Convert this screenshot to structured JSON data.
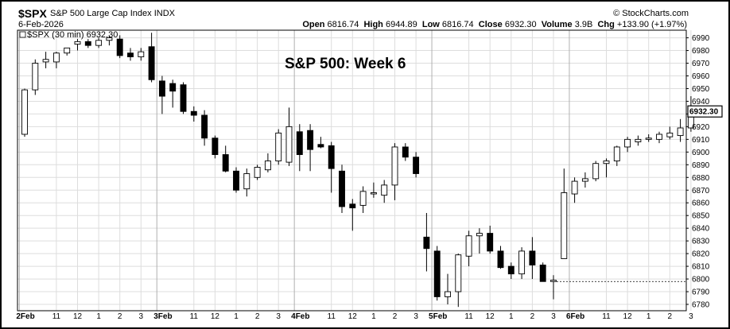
{
  "header": {
    "symbol": "$SPX",
    "name": "S&P 500 Large Cap Index",
    "exchange": "INDX",
    "date": "6-Feb-2026",
    "watermark": "© StockCharts.com",
    "open_label": "Open",
    "open": "6816.74",
    "high_label": "High",
    "high": "6944.89",
    "low_label": "Low",
    "low": "6816.74",
    "close_label": "Close",
    "close": "6932.30",
    "volume_label": "Volume",
    "volume": "3.9B",
    "chg_label": "Chg",
    "chg": "+133.90 (+1.97%)"
  },
  "legend": "$SPX (30 min) 6932.30",
  "annotation": "S&P 500:  Week 6",
  "price_tag": "6932.30",
  "colors": {
    "up": "#ffffff",
    "down": "#000000",
    "grid": "#dddddd",
    "border": "#000000"
  },
  "chart_data": {
    "type": "candlestick",
    "title": "S&P 500:  Week 6",
    "interval": "30 min",
    "ylim": [
      6775,
      6996
    ],
    "yticks": [
      6780,
      6790,
      6800,
      6810,
      6820,
      6830,
      6840,
      6850,
      6860,
      6870,
      6880,
      6890,
      6900,
      6910,
      6920,
      6930,
      6940,
      6950,
      6960,
      6970,
      6980,
      6990
    ],
    "xticks": [
      {
        "label": "2Feb",
        "bar": 0,
        "day": true
      },
      {
        "label": "11",
        "bar": 3
      },
      {
        "label": "12",
        "bar": 5
      },
      {
        "label": "1",
        "bar": 7
      },
      {
        "label": "2",
        "bar": 9
      },
      {
        "label": "3",
        "bar": 11
      },
      {
        "label": "3Feb",
        "bar": 13,
        "day": true
      },
      {
        "label": "11",
        "bar": 16
      },
      {
        "label": "12",
        "bar": 18
      },
      {
        "label": "1",
        "bar": 20
      },
      {
        "label": "2",
        "bar": 22
      },
      {
        "label": "3",
        "bar": 24
      },
      {
        "label": "4Feb",
        "bar": 26,
        "day": true
      },
      {
        "label": "11",
        "bar": 29
      },
      {
        "label": "12",
        "bar": 31
      },
      {
        "label": "1",
        "bar": 33
      },
      {
        "label": "2",
        "bar": 35
      },
      {
        "label": "3",
        "bar": 37
      },
      {
        "label": "5Feb",
        "bar": 39,
        "day": true
      },
      {
        "label": "11",
        "bar": 42
      },
      {
        "label": "12",
        "bar": 44
      },
      {
        "label": "1",
        "bar": 46
      },
      {
        "label": "2",
        "bar": 48
      },
      {
        "label": "3",
        "bar": 50
      },
      {
        "label": "6Feb",
        "bar": 52,
        "day": true
      },
      {
        "label": "11",
        "bar": 55
      },
      {
        "label": "12",
        "bar": 57
      },
      {
        "label": "1",
        "bar": 59
      },
      {
        "label": "2",
        "bar": 61
      },
      {
        "label": "3",
        "bar": 63
      }
    ],
    "reference_line": 6798,
    "candles": [
      {
        "o": 6914,
        "h": 6950,
        "l": 6912,
        "c": 6949
      },
      {
        "o": 6949,
        "h": 6973,
        "l": 6945,
        "c": 6970
      },
      {
        "o": 6971,
        "h": 6979,
        "l": 6966,
        "c": 6973
      },
      {
        "o": 6971,
        "h": 6979,
        "l": 6966,
        "c": 6978
      },
      {
        "o": 6978,
        "h": 6982,
        "l": 6976,
        "c": 6982
      },
      {
        "o": 6985,
        "h": 6989,
        "l": 6980,
        "c": 6987
      },
      {
        "o": 6987,
        "h": 6989,
        "l": 6982,
        "c": 6984
      },
      {
        "o": 6984,
        "h": 6990,
        "l": 6982,
        "c": 6988
      },
      {
        "o": 6988,
        "h": 6992,
        "l": 6984,
        "c": 6990
      },
      {
        "o": 6989,
        "h": 6992,
        "l": 6974,
        "c": 6976
      },
      {
        "o": 6978,
        "h": 6982,
        "l": 6972,
        "c": 6975
      },
      {
        "o": 6975,
        "h": 6982,
        "l": 6972,
        "c": 6979
      },
      {
        "o": 6983,
        "h": 6994,
        "l": 6955,
        "c": 6957
      },
      {
        "o": 6956,
        "h": 6960,
        "l": 6930,
        "c": 6944
      },
      {
        "o": 6954,
        "h": 6957,
        "l": 6935,
        "c": 6948
      },
      {
        "o": 6953,
        "h": 6955,
        "l": 6930,
        "c": 6932
      },
      {
        "o": 6932,
        "h": 6936,
        "l": 6924,
        "c": 6929
      },
      {
        "o": 6929,
        "h": 6933,
        "l": 6905,
        "c": 6911
      },
      {
        "o": 6911,
        "h": 6913,
        "l": 6895,
        "c": 6898
      },
      {
        "o": 6898,
        "h": 6905,
        "l": 6884,
        "c": 6885
      },
      {
        "o": 6885,
        "h": 6888,
        "l": 6868,
        "c": 6870
      },
      {
        "o": 6871,
        "h": 6887,
        "l": 6865,
        "c": 6883
      },
      {
        "o": 6880,
        "h": 6890,
        "l": 6878,
        "c": 6888
      },
      {
        "o": 6886,
        "h": 6899,
        "l": 6884,
        "c": 6893
      },
      {
        "o": 6893,
        "h": 6918,
        "l": 6890,
        "c": 6915
      },
      {
        "o": 6892,
        "h": 6935,
        "l": 6889,
        "c": 6920
      },
      {
        "o": 6916,
        "h": 6922,
        "l": 6885,
        "c": 6898
      },
      {
        "o": 6917,
        "h": 6922,
        "l": 6885,
        "c": 6902
      },
      {
        "o": 6906,
        "h": 6912,
        "l": 6903,
        "c": 6904
      },
      {
        "o": 6905,
        "h": 6908,
        "l": 6868,
        "c": 6887
      },
      {
        "o": 6885,
        "h": 6890,
        "l": 6852,
        "c": 6857
      },
      {
        "o": 6859,
        "h": 6863,
        "l": 6838,
        "c": 6856
      },
      {
        "o": 6858,
        "h": 6873,
        "l": 6852,
        "c": 6869
      },
      {
        "o": 6867,
        "h": 6876,
        "l": 6864,
        "c": 6868
      },
      {
        "o": 6866,
        "h": 6878,
        "l": 6860,
        "c": 6874
      },
      {
        "o": 6874,
        "h": 6907,
        "l": 6862,
        "c": 6904
      },
      {
        "o": 6904,
        "h": 6907,
        "l": 6893,
        "c": 6896
      },
      {
        "o": 6896,
        "h": 6900,
        "l": 6880,
        "c": 6883
      },
      {
        "o": 6833,
        "h": 6852,
        "l": 6806,
        "c": 6824
      },
      {
        "o": 6822,
        "h": 6826,
        "l": 6783,
        "c": 6786
      },
      {
        "o": 6786,
        "h": 6804,
        "l": 6780,
        "c": 6790
      },
      {
        "o": 6790,
        "h": 6820,
        "l": 6778,
        "c": 6819
      },
      {
        "o": 6818,
        "h": 6838,
        "l": 6810,
        "c": 6834
      },
      {
        "o": 6834,
        "h": 6840,
        "l": 6820,
        "c": 6836
      },
      {
        "o": 6836,
        "h": 6842,
        "l": 6820,
        "c": 6822
      },
      {
        "o": 6822,
        "h": 6826,
        "l": 6808,
        "c": 6809
      },
      {
        "o": 6810,
        "h": 6813,
        "l": 6800,
        "c": 6804
      },
      {
        "o": 6804,
        "h": 6825,
        "l": 6800,
        "c": 6822
      },
      {
        "o": 6822,
        "h": 6833,
        "l": 6800,
        "c": 6811
      },
      {
        "o": 6811,
        "h": 6813,
        "l": 6798,
        "c": 6798
      },
      {
        "o": 6798,
        "h": 6803,
        "l": 6784,
        "c": 6799
      },
      {
        "o": 6816,
        "h": 6887,
        "l": 6816,
        "c": 6868
      },
      {
        "o": 6867,
        "h": 6880,
        "l": 6860,
        "c": 6877
      },
      {
        "o": 6877,
        "h": 6884,
        "l": 6872,
        "c": 6879
      },
      {
        "o": 6879,
        "h": 6893,
        "l": 6877,
        "c": 6891
      },
      {
        "o": 6891,
        "h": 6895,
        "l": 6880,
        "c": 6893
      },
      {
        "o": 6893,
        "h": 6905,
        "l": 6889,
        "c": 6904
      },
      {
        "o": 6904,
        "h": 6912,
        "l": 6900,
        "c": 6910
      },
      {
        "o": 6908,
        "h": 6913,
        "l": 6905,
        "c": 6910
      },
      {
        "o": 6910,
        "h": 6914,
        "l": 6908,
        "c": 6911
      },
      {
        "o": 6910,
        "h": 6916,
        "l": 6907,
        "c": 6914
      },
      {
        "o": 6912,
        "h": 6920,
        "l": 6910,
        "c": 6915
      },
      {
        "o": 6913,
        "h": 6926,
        "l": 6908,
        "c": 6919
      },
      {
        "o": 6919,
        "h": 6944,
        "l": 6916,
        "c": 6932
      }
    ]
  }
}
